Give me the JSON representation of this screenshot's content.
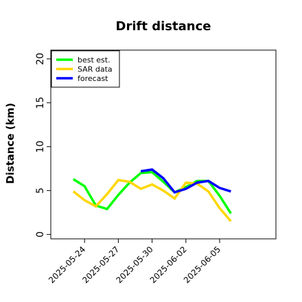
{
  "chart_data": {
    "type": "line",
    "title": "Drift distance",
    "xlabel": "",
    "ylabel": "Distance (km)",
    "x": [
      "2025-05-23",
      "2025-05-24",
      "2025-05-25",
      "2025-05-26",
      "2025-05-27",
      "2025-05-28",
      "2025-05-29",
      "2025-05-30",
      "2025-05-31",
      "2025-06-01",
      "2025-06-02",
      "2025-06-03",
      "2025-06-04",
      "2025-06-05",
      "2025-06-06"
    ],
    "xticks": [
      "2025-05-24",
      "2025-05-27",
      "2025-05-30",
      "2025-06-02",
      "2025-06-05"
    ],
    "xlim": [
      "2025-05-21",
      "2025-06-10"
    ],
    "yticks": [
      0,
      5,
      10,
      15,
      20
    ],
    "ylim": [
      -0.5,
      21
    ],
    "grid": false,
    "legend_position": "top-left",
    "series": [
      {
        "name": "best est.",
        "color": "#00ff00",
        "x": [
          "2025-05-23",
          "2025-05-24",
          "2025-05-25",
          "2025-05-26",
          "2025-05-27",
          "2025-05-28",
          "2025-05-29",
          "2025-05-30",
          "2025-05-31",
          "2025-06-01",
          "2025-06-02",
          "2025-06-03",
          "2025-06-04",
          "2025-06-05",
          "2025-06-06"
        ],
        "values": [
          6.3,
          5.5,
          3.3,
          2.9,
          4.5,
          5.9,
          7.0,
          7.1,
          6.0,
          4.8,
          5.4,
          6.1,
          6.1,
          4.4,
          2.4
        ]
      },
      {
        "name": "SAR data",
        "color": "#ffd700",
        "x": [
          "2025-05-23",
          "2025-05-24",
          "2025-05-25",
          "2025-05-26",
          "2025-05-27",
          "2025-05-28",
          "2025-05-29",
          "2025-05-30",
          "2025-05-31",
          "2025-06-01",
          "2025-06-02",
          "2025-06-03",
          "2025-06-04",
          "2025-06-05",
          "2025-06-06"
        ],
        "values": [
          4.9,
          3.9,
          3.2,
          4.6,
          6.2,
          6.0,
          5.2,
          5.7,
          5.0,
          4.1,
          5.9,
          5.8,
          4.9,
          3.0,
          1.5
        ]
      },
      {
        "name": "forecast",
        "color": "#0000ff",
        "x": [
          "2025-05-29",
          "2025-05-30",
          "2025-05-31",
          "2025-06-01",
          "2025-06-02",
          "2025-06-03",
          "2025-06-04",
          "2025-06-05",
          "2025-06-06"
        ],
        "values": [
          7.2,
          7.4,
          6.4,
          4.8,
          5.2,
          5.9,
          6.1,
          5.3,
          4.9
        ]
      }
    ]
  }
}
